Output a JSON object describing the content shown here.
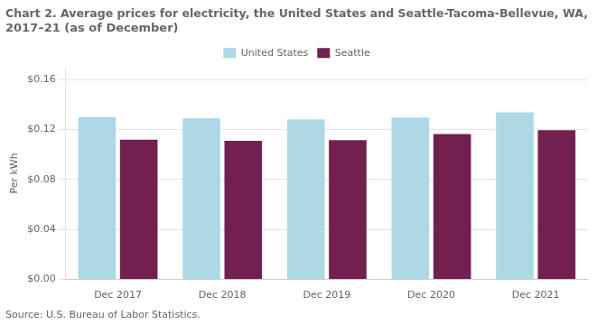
{
  "chart_data": {
    "type": "bar",
    "title": "Chart 2. Average prices for electricity, the United States and Seattle-Tacoma-Bellevue, WA,\n2017–21 (as of December)",
    "ylabel": "Per kWh",
    "source": "Source: U.S. Bureau of Labor Statistics.",
    "categories": [
      "Dec 2017",
      "Dec 2018",
      "Dec 2019",
      "Dec 2020",
      "Dec 2021"
    ],
    "series": [
      {
        "name": "United States",
        "color": "#add8e6",
        "values": [
          0.1298,
          0.1289,
          0.1281,
          0.1295,
          0.1336
        ]
      },
      {
        "name": "Seattle",
        "color": "#722050",
        "values": [
          0.1119,
          0.1109,
          0.1115,
          0.1163,
          0.1195
        ]
      }
    ],
    "ylim": [
      0,
      0.17
    ],
    "yticks": [
      {
        "value": 0.0,
        "label": "$0.00"
      },
      {
        "value": 0.04,
        "label": "$0.04"
      },
      {
        "value": 0.08,
        "label": "$0.08"
      },
      {
        "value": 0.12,
        "label": "$0.12"
      },
      {
        "value": 0.16,
        "label": "$0.16"
      }
    ],
    "grid": true,
    "legend": "top"
  }
}
